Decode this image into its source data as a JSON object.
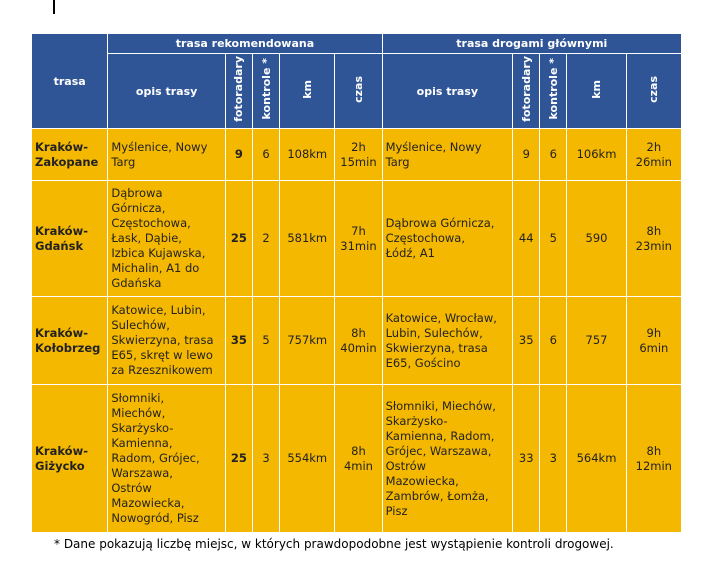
{
  "header": {
    "trasa": "trasa",
    "rec_group": "trasa rekomendowana",
    "main_group": "trasa drogami głównymi",
    "opis": "opis trasy",
    "fotoradary": "fotoradary",
    "kontrole": "kontrole *",
    "km": "km",
    "czas": "czas"
  },
  "rows": [
    {
      "route": [
        "Kraków-",
        "Zakopane"
      ],
      "rec": {
        "desc": [
          "Myślenice, Nowy",
          "Targ"
        ],
        "foto": "9",
        "kontrole": "6",
        "km": "108km",
        "czas": [
          "2h",
          "15min"
        ]
      },
      "main": {
        "desc": [
          "Myślenice, Nowy",
          "Targ"
        ],
        "foto": "9",
        "kontrole": "6",
        "km": "106km",
        "czas": [
          "2h",
          "26min"
        ]
      }
    },
    {
      "route": [
        "Kraków-",
        "Gdańsk"
      ],
      "rec": {
        "desc": [
          "Dąbrowa",
          "Górnicza,",
          "Częstochowa,",
          "Łask, Dąbie,",
          "Izbica Kujawska,",
          "Michalin, A1 do",
          "Gdańska"
        ],
        "foto": "25",
        "kontrole": "2",
        "km": "581km",
        "czas": [
          "7h",
          "31min"
        ]
      },
      "main": {
        "desc": [
          "Dąbrowa Górnicza,",
          "Częstochowa,",
          "Łódź, A1"
        ],
        "foto": "44",
        "kontrole": "5",
        "km": "590",
        "czas": [
          "8h",
          "23min"
        ]
      }
    },
    {
      "route": [
        "Kraków-",
        "Kołobrzeg"
      ],
      "rec": {
        "desc": [
          "Katowice, Lubin,",
          "Sulechów,",
          "Skwierzyna, trasa",
          "E65, skręt w lewo",
          "za Rzesznikowem"
        ],
        "foto": "35",
        "kontrole": "5",
        "km": "757km",
        "czas": [
          "8h",
          "40min"
        ]
      },
      "main": {
        "desc": [
          "Katowice, Wrocław,",
          "Lubin, Sulechów,",
          "Skwierzyna, trasa",
          "E65, Gościno"
        ],
        "foto": "35",
        "kontrole": "6",
        "km": "757",
        "czas": [
          "9h",
          "6min"
        ]
      }
    },
    {
      "route": [
        "Kraków-",
        "Giżycko"
      ],
      "rec": {
        "desc": [
          "Słomniki,",
          "Miechów,",
          "Skarżysko-",
          "Kamienna,",
          "Radom, Grójec,",
          "Warszawa,",
          "Ostrów",
          "Mazowiecka,",
          "Nowogród, Pisz"
        ],
        "foto": "25",
        "kontrole": "3",
        "km": "554km",
        "czas": [
          "8h",
          "4min"
        ]
      },
      "main": {
        "desc": [
          "Słomniki, Miechów,",
          "Skarżysko-",
          "Kamienna, Radom,",
          "Grójec, Warszawa,",
          "Ostrów",
          "Mazowiecka,",
          "Zambrów, Łomża,",
          "Pisz"
        ],
        "foto": "33",
        "kontrole": "3",
        "km": "564km",
        "czas": [
          "8h",
          "12min"
        ]
      }
    }
  ],
  "footnote": "* Dane pokazują liczbę miejsc, w których prawdopodobne jest wystąpienie kontroli drogowej."
}
